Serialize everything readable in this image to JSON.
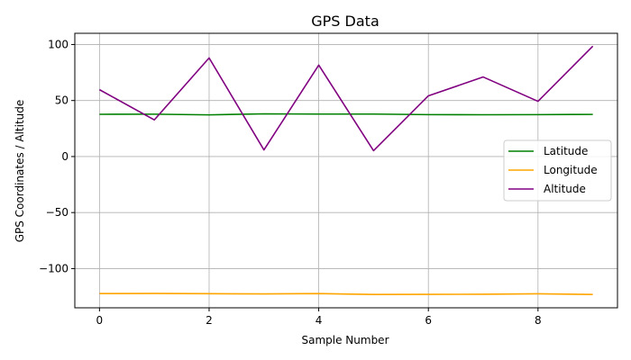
{
  "chart_data": {
    "type": "line",
    "title": "GPS Data",
    "xlabel": "Sample Number",
    "ylabel": "GPS Coordinates / Altitude",
    "x": [
      0,
      1,
      2,
      3,
      4,
      5,
      6,
      7,
      8,
      9
    ],
    "xlim": [
      -0.45,
      9.45
    ],
    "ylim": [
      -135,
      110
    ],
    "x_ticks": [
      0,
      2,
      4,
      6,
      8
    ],
    "y_ticks": [
      -100,
      -50,
      0,
      50,
      100
    ],
    "x_tick_labels": [
      "0",
      "2",
      "4",
      "6",
      "8"
    ],
    "y_tick_labels": [
      "−100",
      "−50",
      "0",
      "50",
      "100"
    ],
    "grid": true,
    "legend_position": "center-right",
    "series": [
      {
        "name": "Latitude",
        "color": "#008000",
        "values": [
          37.7,
          37.8,
          37.2,
          38.1,
          37.9,
          37.9,
          37.4,
          37.3,
          37.4,
          37.6
        ]
      },
      {
        "name": "Longitude",
        "color": "#FFA500",
        "values": [
          -122.3,
          -122.2,
          -122.4,
          -122.6,
          -122.3,
          -123.1,
          -123.0,
          -122.9,
          -122.5,
          -123.1
        ]
      },
      {
        "name": "Altitude",
        "color": "#800080",
        "values": [
          59.7,
          32.7,
          88.0,
          5.9,
          81.6,
          5.2,
          54.2,
          71.0,
          49.3,
          98.5
        ]
      }
    ]
  }
}
